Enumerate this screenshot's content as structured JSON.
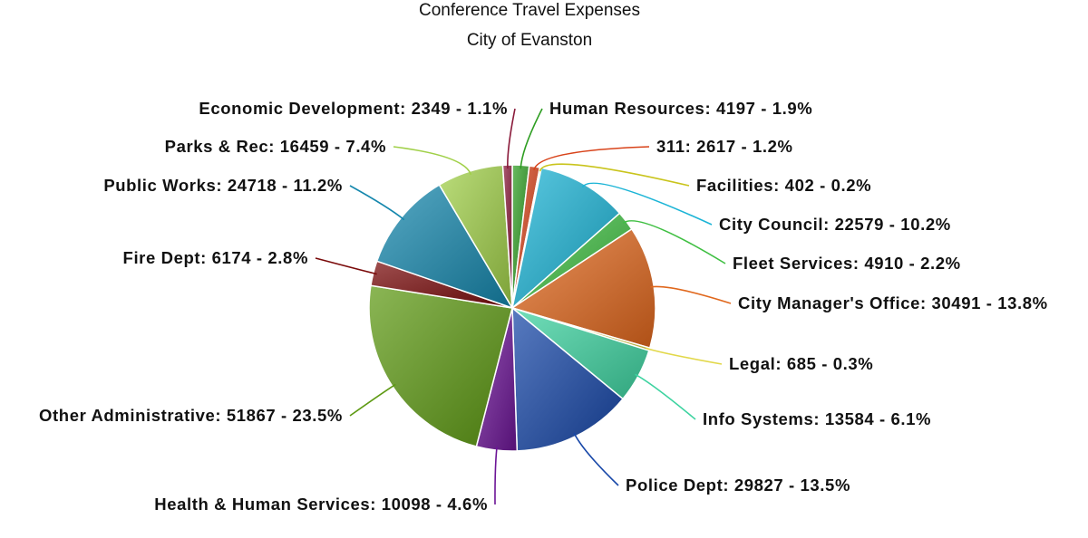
{
  "chart_data": {
    "type": "pie",
    "title": "Conference Travel Expenses",
    "subtitle": "City of Evanston",
    "slices": [
      {
        "label": "Human Resources",
        "value": 4197,
        "percent": "1.9%",
        "color": "#2e9e22"
      },
      {
        "label": "311",
        "value": 2617,
        "percent": "1.2%",
        "color": "#d8431a"
      },
      {
        "label": "Facilities",
        "value": 402,
        "percent": "0.2%",
        "color": "#c9c41c"
      },
      {
        "label": "City Council",
        "value": 22579,
        "percent": "10.2%",
        "color": "#1bb4d6"
      },
      {
        "label": "Fleet Services",
        "value": 4910,
        "percent": "2.2%",
        "color": "#3fbf42"
      },
      {
        "label": "City Manager's Office",
        "value": 30491,
        "percent": "13.8%",
        "color": "#e0671c"
      },
      {
        "label": "Legal",
        "value": 685,
        "percent": "0.3%",
        "color": "#e2d84a"
      },
      {
        "label": "Info Systems",
        "value": 13584,
        "percent": "6.1%",
        "color": "#3dd3a0"
      },
      {
        "label": "Police Dept",
        "value": 29827,
        "percent": "13.5%",
        "color": "#1747a8"
      },
      {
        "label": "Health & Human Services",
        "value": 10098,
        "percent": "4.6%",
        "color": "#6c1496"
      },
      {
        "label": "Other Administrative",
        "value": 51867,
        "percent": "23.5%",
        "color": "#5e9a13"
      },
      {
        "label": "Fire Dept",
        "value": 6174,
        "percent": "2.8%",
        "color": "#7a0a0a"
      },
      {
        "label": "Public Works",
        "value": 24718,
        "percent": "11.2%",
        "color": "#1587ad"
      },
      {
        "label": "Parks & Rec",
        "value": 16459,
        "percent": "7.4%",
        "color": "#a0d048"
      },
      {
        "label": "Economic Development",
        "value": 2349,
        "percent": "1.1%",
        "color": "#8a1a3a"
      }
    ]
  }
}
